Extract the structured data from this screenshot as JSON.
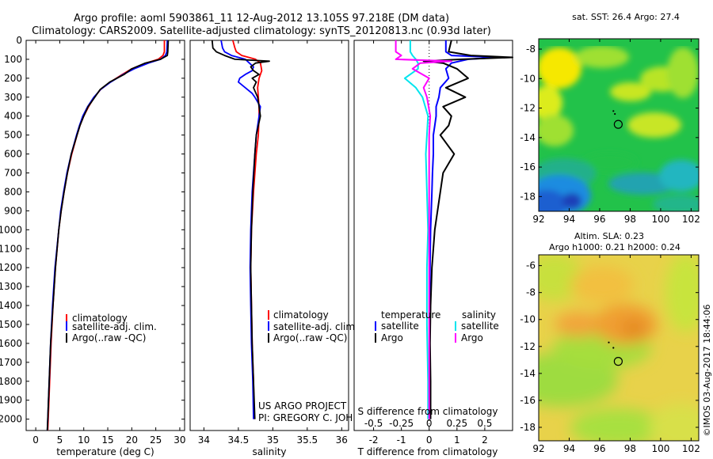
{
  "header": {
    "line1": "Argo profile: aoml 5903861_11 12-Aug-2012 13.105S 97.218E (DM data)",
    "line2": "Climatology: CARS2009. Satellite-adjusted climatology: synTS_20120813.nc (0.93d later)"
  },
  "depth_axis": {
    "ticks": [
      0,
      100,
      200,
      300,
      400,
      500,
      600,
      700,
      800,
      900,
      1000,
      1100,
      1200,
      1300,
      1400,
      1500,
      1600,
      1700,
      1800,
      1900,
      2000
    ],
    "range": [
      0,
      2060
    ]
  },
  "colors": {
    "climatology": "#ff0000",
    "satellite": "#0000ff",
    "argo": "#000000",
    "sal_sat": "#00e5ee",
    "sal_argo": "#ff00ff"
  },
  "chart_data": [
    {
      "type": "line",
      "id": "temperature",
      "xlabel": "temperature (deg C)",
      "xticks": [
        0,
        5,
        10,
        15,
        20,
        25,
        30
      ],
      "xlim": [
        -2,
        31
      ],
      "legend": [
        "climatology",
        "satellite-adj. clim.",
        "Argo(..raw -QC)"
      ],
      "series": [
        {
          "name": "climatology",
          "depth": [
            0,
            60,
            80,
            100,
            120,
            150,
            180,
            220,
            260,
            300,
            350,
            400,
            450,
            500,
            600,
            700,
            800,
            900,
            1000,
            1200,
            1400,
            1600,
            1800,
            2000,
            2060
          ],
          "values": [
            26.8,
            26.8,
            26.5,
            25.5,
            23,
            20,
            18,
            15.5,
            13.5,
            12.2,
            11,
            10,
            9.2,
            8.6,
            7.5,
            6.6,
            5.9,
            5.3,
            4.8,
            4.1,
            3.6,
            3.2,
            2.9,
            2.6,
            2.5
          ]
        },
        {
          "name": "satellite",
          "depth": [
            0,
            60,
            80,
            100,
            120,
            150,
            180,
            220,
            260,
            300,
            350,
            400,
            450,
            500,
            600,
            700,
            800,
            900,
            1000,
            1200,
            1400,
            1600,
            1800,
            2000,
            2060
          ],
          "values": [
            27.4,
            27.3,
            27,
            26,
            23.5,
            20.5,
            18.2,
            15.6,
            13.5,
            12.1,
            10.8,
            9.8,
            9.1,
            8.5,
            7.4,
            6.5,
            5.8,
            5.2,
            4.8,
            4.0,
            3.5,
            3.1,
            2.8,
            2.5,
            2.4
          ]
        },
        {
          "name": "argo",
          "depth": [
            0,
            60,
            80,
            100,
            120,
            150,
            180,
            220,
            260,
            300,
            350,
            400,
            450,
            500,
            600,
            700,
            800,
            900,
            1000,
            1200,
            1400,
            1600,
            1800,
            2000,
            2060
          ],
          "values": [
            27.6,
            27.5,
            27.4,
            26,
            22.8,
            20,
            18.4,
            15.4,
            13.4,
            12.3,
            10.9,
            10,
            9.2,
            8.6,
            7.4,
            6.6,
            5.9,
            5.3,
            4.8,
            4.1,
            3.6,
            3.1,
            2.8,
            2.5,
            2.4
          ]
        }
      ]
    },
    {
      "type": "line",
      "id": "salinity",
      "xlabel": "salinity",
      "xticks": [
        34,
        34.5,
        35,
        35.5,
        36
      ],
      "xlim": [
        33.8,
        36.1
      ],
      "legend": [
        "climatology",
        "satellite-adj. clim.",
        "Argo(..raw -QC)"
      ],
      "series": [
        {
          "name": "climatology",
          "depth": [
            0,
            40,
            60,
            80,
            100,
            120,
            140,
            160,
            180,
            200,
            250,
            300,
            350,
            400,
            500,
            600,
            800,
            1000,
            1200,
            1400,
            1600,
            1800,
            2000
          ],
          "values": [
            34.42,
            34.45,
            34.47,
            34.55,
            34.75,
            34.82,
            34.83,
            34.84,
            34.82,
            34.8,
            34.78,
            34.79,
            34.8,
            34.8,
            34.79,
            34.76,
            34.72,
            34.69,
            34.68,
            34.69,
            34.7,
            34.72,
            34.73
          ]
        },
        {
          "name": "satellite",
          "depth": [
            0,
            40,
            60,
            80,
            100,
            120,
            140,
            160,
            180,
            200,
            220,
            250,
            280,
            300,
            350,
            400,
            500,
            600,
            800,
            1000,
            1200,
            1400,
            1600,
            1800,
            2000
          ],
          "values": [
            34.25,
            34.27,
            34.3,
            34.4,
            34.6,
            34.66,
            34.72,
            34.7,
            34.6,
            34.52,
            34.5,
            34.6,
            34.7,
            34.74,
            34.82,
            34.8,
            34.76,
            34.74,
            34.7,
            34.68,
            34.67,
            34.68,
            34.69,
            34.71,
            34.72
          ]
        },
        {
          "name": "argo",
          "depth": [
            0,
            40,
            60,
            80,
            100,
            110,
            120,
            140,
            160,
            180,
            200,
            220,
            250,
            300,
            350,
            400,
            500,
            600,
            800,
            1000,
            1200,
            1400,
            1600,
            1800,
            2000
          ],
          "values": [
            34.12,
            34.13,
            34.18,
            34.3,
            34.45,
            34.95,
            34.75,
            34.68,
            34.72,
            34.8,
            34.7,
            34.76,
            34.72,
            34.78,
            34.8,
            34.82,
            34.76,
            34.74,
            34.71,
            34.69,
            34.68,
            34.69,
            34.7,
            34.72,
            34.74
          ]
        }
      ]
    },
    {
      "type": "line",
      "id": "difference",
      "xlabel": "T difference from climatology",
      "xlabel_top": "S difference from climatology",
      "xticks": [
        -2,
        -1,
        0,
        1,
        2
      ],
      "xlim": [
        -2.7,
        3.0
      ],
      "sticks": [
        -0.5,
        -0.25,
        0,
        0.25,
        0.5
      ],
      "slim": [
        -0.675,
        0.75
      ],
      "legend_titles": [
        "temperature",
        "salinity"
      ],
      "legend": [
        "satellite",
        "Argo",
        "satellite",
        "Argo"
      ],
      "series": [
        {
          "name": "T satellite",
          "kind": "T",
          "depth": [
            0,
            60,
            80,
            90,
            100,
            120,
            150,
            200,
            250,
            300,
            350,
            400,
            450,
            500,
            600,
            700,
            800,
            1000,
            1200,
            1400,
            1600,
            1800,
            2000
          ],
          "values": [
            0.6,
            0.6,
            0.8,
            2.5,
            1.4,
            0.8,
            0.6,
            0.7,
            0.4,
            0.35,
            0.25,
            0.25,
            0.2,
            0.15,
            0.15,
            0.12,
            0.1,
            0.05,
            0.03,
            0.02,
            0.02,
            0.03,
            0.02
          ]
        },
        {
          "name": "T argo",
          "kind": "T",
          "depth": [
            0,
            60,
            80,
            90,
            100,
            110,
            120,
            150,
            200,
            250,
            300,
            350,
            400,
            450,
            500,
            600,
            700,
            800,
            1000,
            1200,
            1400,
            1600,
            1800,
            2000
          ],
          "values": [
            0.8,
            0.7,
            1.5,
            3.0,
            1.2,
            -0.2,
            0.5,
            1.0,
            1.4,
            0.6,
            1.3,
            0.5,
            0.8,
            0.7,
            0.4,
            0.9,
            0.5,
            0.4,
            0.2,
            0.1,
            0.05,
            0.03,
            0.05,
            0.05
          ]
        },
        {
          "name": "S satellite",
          "kind": "S",
          "depth": [
            0,
            60,
            80,
            100,
            120,
            150,
            200,
            250,
            300,
            400,
            500,
            600,
            800,
            1000,
            1200,
            1500,
            1800,
            2000
          ],
          "values": [
            -0.17,
            -0.17,
            -0.15,
            -0.12,
            -0.1,
            -0.1,
            -0.22,
            -0.12,
            -0.06,
            -0.01,
            -0.02,
            -0.03,
            -0.02,
            -0.01,
            -0.02,
            -0.02,
            -0.01,
            -0.01
          ]
        },
        {
          "name": "S argo",
          "kind": "S",
          "depth": [
            0,
            60,
            80,
            100,
            110,
            120,
            150,
            200,
            250,
            300,
            400,
            500,
            600,
            800,
            1000,
            1200,
            1500,
            1800,
            2000
          ],
          "values": [
            -0.3,
            -0.3,
            -0.25,
            -0.3,
            0.2,
            -0.08,
            -0.15,
            0.0,
            -0.05,
            -0.02,
            0.01,
            0.0,
            0.0,
            0.0,
            0.0,
            0.0,
            0.0,
            0.0,
            0.0
          ]
        }
      ]
    },
    {
      "type": "heatmap",
      "id": "sst_map",
      "title": "sat. SST: 26.4 Argo: 27.4",
      "lon_range": [
        92,
        102.5
      ],
      "lat_range": [
        -19,
        -7.3
      ],
      "xticks": [
        92,
        94,
        96,
        98,
        100,
        102
      ],
      "yticks": [
        -8,
        -10,
        -12,
        -14,
        -16,
        -18
      ],
      "float_lon": 97.218,
      "float_lat": -13.105,
      "track": [
        [
          96.9,
          -12.2
        ],
        [
          97.0,
          -12.4
        ]
      ]
    },
    {
      "type": "heatmap",
      "id": "sla_map",
      "title": "Altim. SLA: 0.23",
      "subtitle": "Argo h1000: 0.21 h2000: 0.24",
      "lon_range": [
        92,
        102.5
      ],
      "lat_range": [
        -19,
        -5.2
      ],
      "xticks": [
        92,
        94,
        96,
        98,
        100,
        102
      ],
      "yticks": [
        -6,
        -8,
        -10,
        -12,
        -14,
        -16,
        -18
      ],
      "float_lon": 97.218,
      "float_lat": -13.105,
      "track": [
        [
          96.6,
          -11.7
        ],
        [
          96.9,
          -12.1
        ]
      ]
    }
  ],
  "credits": {
    "project": "US ARGO PROJECT",
    "pi": "PI: GREGORY C. JOHNSON"
  },
  "watermark": "©IMOS 03-Aug-2017 18:44:06"
}
